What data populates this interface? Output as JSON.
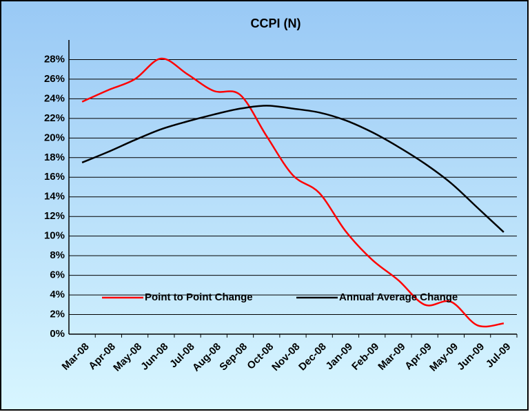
{
  "chart_data": {
    "type": "line",
    "title": "CCPI (N)",
    "categories": [
      "Mar-08",
      "Apr-08",
      "May-08",
      "Jun-08",
      "Jul-08",
      "Aug-08",
      "Sep-08",
      "Oct-08",
      "Nov-08",
      "Dec-08",
      "Jan-09",
      "Feb-09",
      "Mar-09",
      "Apr-09",
      "May-09",
      "Jun-09",
      "Jul-09"
    ],
    "series": [
      {
        "name": "Point to Point Change",
        "color": "#ff0000",
        "values": [
          23.7,
          24.9,
          26.0,
          28.1,
          26.5,
          24.8,
          24.4,
          20.2,
          16.2,
          14.4,
          10.5,
          7.6,
          5.5,
          3.0,
          3.3,
          0.9,
          1.1
        ]
      },
      {
        "name": "Annual Average Change",
        "color": "#000000",
        "values": [
          17.5,
          18.6,
          19.8,
          20.9,
          21.7,
          22.4,
          23.0,
          23.3,
          23.0,
          22.6,
          21.8,
          20.6,
          19.1,
          17.4,
          15.4,
          12.9,
          10.4
        ]
      }
    ],
    "ylim": [
      0,
      30
    ],
    "yticks": [
      {
        "value": 0,
        "label": "0%"
      },
      {
        "value": 2,
        "label": "2%"
      },
      {
        "value": 4,
        "label": "4%"
      },
      {
        "value": 6,
        "label": "6%"
      },
      {
        "value": 8,
        "label": "8%"
      },
      {
        "value": 10,
        "label": "10%"
      },
      {
        "value": 12,
        "label": "12%"
      },
      {
        "value": 14,
        "label": "14%"
      },
      {
        "value": 16,
        "label": "16%"
      },
      {
        "value": 18,
        "label": "18%"
      },
      {
        "value": 20,
        "label": "20%"
      },
      {
        "value": 22,
        "label": "22%"
      },
      {
        "value": 24,
        "label": "24%"
      },
      {
        "value": 26,
        "label": "26%"
      },
      {
        "value": 28,
        "label": "28%"
      }
    ],
    "grid": true,
    "legend": "inside-bottom"
  }
}
